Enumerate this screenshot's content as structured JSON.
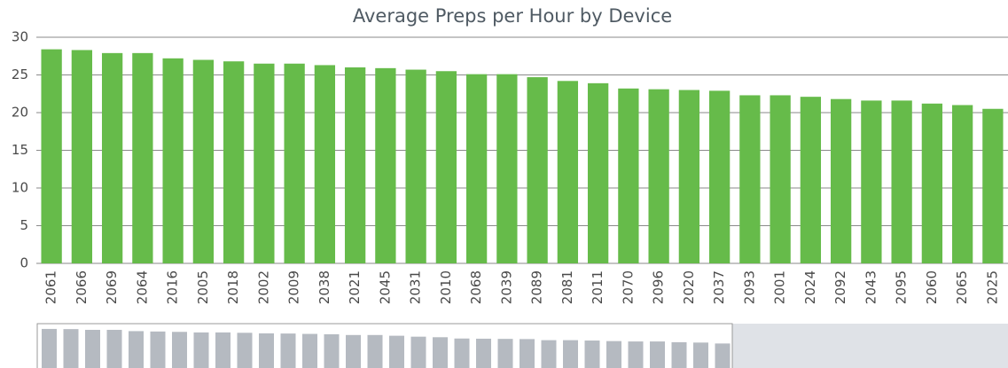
{
  "chart_data": {
    "type": "bar",
    "title": "Average Preps per Hour by Device",
    "categories": [
      "2061",
      "2066",
      "2069",
      "2064",
      "2016",
      "2005",
      "2018",
      "2002",
      "2009",
      "2038",
      "2021",
      "2045",
      "2031",
      "2010",
      "2068",
      "2039",
      "2089",
      "2081",
      "2011",
      "2070",
      "2096",
      "2020",
      "2037",
      "2093",
      "2001",
      "2024",
      "2092",
      "2043",
      "2095",
      "2060",
      "2065",
      "2025"
    ],
    "values": [
      28.4,
      28.3,
      27.9,
      27.9,
      27.2,
      27.0,
      26.8,
      26.5,
      26.5,
      26.3,
      26.0,
      25.9,
      25.7,
      25.5,
      25.1,
      25.1,
      24.7,
      24.2,
      23.9,
      23.2,
      23.1,
      23.0,
      22.9,
      22.3,
      22.3,
      22.1,
      21.8,
      21.6,
      21.6,
      21.2,
      21.0,
      20.5
    ],
    "color": "#66bb4a",
    "ylim": [
      0,
      30
    ],
    "yticks": [
      0,
      5,
      10,
      15,
      20,
      25,
      30
    ],
    "grid": true
  }
}
